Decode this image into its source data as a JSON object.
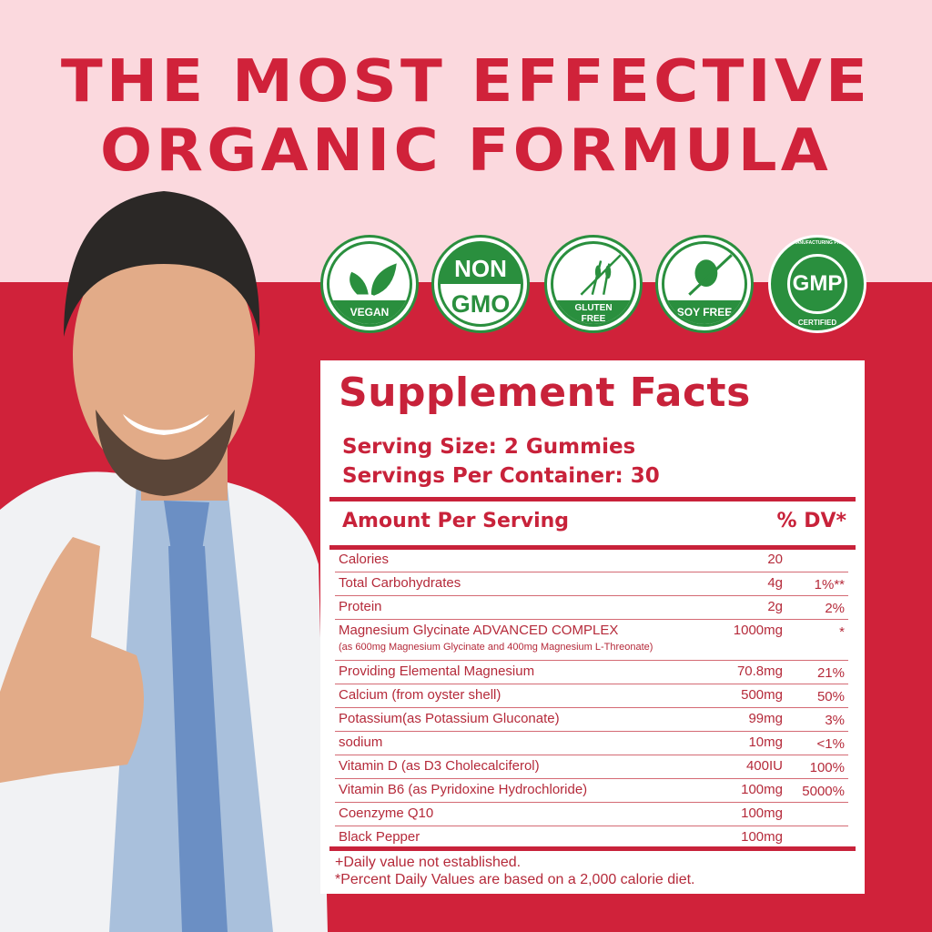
{
  "headline": {
    "line1": "THE MOST EFFECTIVE",
    "line2": "ORGANIC FORMULA"
  },
  "colors": {
    "brand_red": "#d0223a",
    "pink": "#fbd9de",
    "badge_green": "#2a8f3e"
  },
  "badges": [
    {
      "icon": "leaf-icon",
      "label": "VEGAN"
    },
    {
      "icon": "non-gmo-icon",
      "top": "NON",
      "label": "GMO"
    },
    {
      "icon": "wheat-crossed-icon",
      "label": "GLUTEN",
      "label2": "FREE"
    },
    {
      "icon": "soy-bean-crossed-icon",
      "label": "SOY FREE"
    },
    {
      "icon": "gmp-seal-icon",
      "ring_top": "GOOD MANUFACTURING PRACITCE",
      "center": "GMP",
      "ring_bottom": "CERTIFIED"
    }
  ],
  "facts": {
    "title": "Supplement Facts",
    "serving_size": "Serving Size: 2 Gummies",
    "servings_per_container": "Servings Per Container: 30",
    "amount_header": "Amount Per Serving",
    "dv_header": "% DV*",
    "rows": [
      {
        "name": "Calories",
        "amount": "20",
        "dv": ""
      },
      {
        "name": "Total Carbohydrates",
        "amount": "4g",
        "dv": "1%**"
      },
      {
        "name": "Protein",
        "amount": "2g",
        "dv": "2%"
      },
      {
        "name": "Magnesium Glycinate ADVANCED COMPLEX",
        "sub": "(as 600mg Magnesium Glycinate and 400mg Magnesium L-Threonate)",
        "amount": "1000mg",
        "dv": "*"
      },
      {
        "name": "Providing Elemental Magnesium",
        "amount": "70.8mg",
        "dv": "21%"
      },
      {
        "name": "Calcium (from oyster shell)",
        "amount": "500mg",
        "dv": "50%"
      },
      {
        "name": "Potassium(as Potassium Gluconate)",
        "amount": "99mg",
        "dv": "3%"
      },
      {
        "name": "sodium",
        "amount": "10mg",
        "dv": "<1%"
      },
      {
        "name": "Vitamin D (as D3 Cholecalciferol)",
        "amount": "400IU",
        "dv": "100%"
      },
      {
        "name": "Vitamin B6 (as Pyridoxine Hydrochloride)",
        "amount": "100mg",
        "dv": "5000%"
      },
      {
        "name": "Coenzyme Q10",
        "amount": "100mg",
        "dv": ""
      },
      {
        "name": "Black Pepper",
        "amount": "100mg",
        "dv": ""
      }
    ],
    "footnote1": "+Daily value not established.",
    "footnote2": "*Percent Daily Values are based on a 2,000 calorie diet."
  }
}
